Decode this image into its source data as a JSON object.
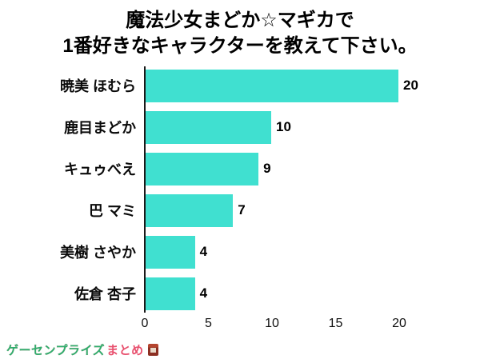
{
  "title": {
    "line1": "魔法少女まどか☆マギカで",
    "line2": "1番好きなキャラクターを教えて下さい。"
  },
  "chart_data": {
    "type": "bar",
    "orientation": "horizontal",
    "title": "魔法少女まどか☆マギカで1番好きなキャラクターを教えて下さい。",
    "categories": [
      "暁美 ほむら",
      "鹿目まどか",
      "キュゥべえ",
      "巴 マミ",
      "美樹 さやか",
      "佐倉 杏子"
    ],
    "values": [
      20,
      10,
      9,
      7,
      4,
      4
    ],
    "xlabel": "",
    "ylabel": "",
    "xlim": [
      0,
      20
    ],
    "xticks": [
      0,
      5,
      10,
      15,
      20
    ],
    "bar_color": "#40e0d0",
    "grid": false,
    "legend": false
  },
  "watermark": {
    "text_primary": "ゲーセンプライズ",
    "text_secondary": "まとめ",
    "icon": "crane-game-icon",
    "color_primary": "#2fae6e",
    "color_secondary": "#e8506e"
  }
}
